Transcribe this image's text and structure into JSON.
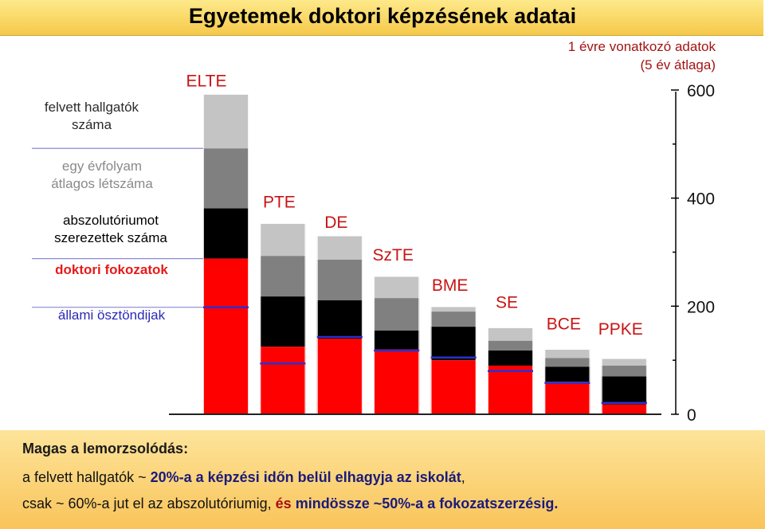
{
  "header": {
    "title": "Egyetemek doktori képzésének adatai"
  },
  "note": {
    "line1": "1 évre vonatkozó adatok",
    "line2": "(5 év átlaga)"
  },
  "legend": {
    "felvett": [
      "felvett hallgatók",
      "száma"
    ],
    "evfolyam": [
      "egy évfolyam",
      "átlagos létszáma"
    ],
    "absz": [
      "abszolutóriumot",
      "szerezettek száma"
    ],
    "doktori": "doktori fokozatok",
    "osztondij": "állami ösztöndijak"
  },
  "footer": {
    "heading": "Magas a lemorzsolódás:",
    "line2_a": "a felvett hallgatók   ~ ",
    "line2_b": "20%-a a képzési időn belül elhagyja az iskolát",
    "line2_c": ",",
    "line3_a": "csak ~ 60%-a  jut el az abszolutóriumig,  ",
    "line3_b": "és",
    "line3_c": " mindössze ~50%-a a fokozatszerzésig."
  },
  "chart_data": {
    "type": "bar",
    "categories": [
      "ELTE",
      "PTE",
      "DE",
      "SzTE",
      "BME",
      "SE",
      "BCE",
      "PPKE"
    ],
    "series": [
      {
        "name": "felvett hallgatók száma",
        "values": [
          592,
          353,
          330,
          255,
          199,
          160,
          120,
          103
        ]
      },
      {
        "name": "egy évfolyam átlagos létszáma",
        "values": [
          492,
          293,
          286,
          215,
          190,
          136,
          104,
          90
        ]
      },
      {
        "name": "abszolutóriumot szerezettek száma",
        "values": [
          381,
          218,
          211,
          155,
          162,
          118,
          88,
          70
        ]
      },
      {
        "name": "doktori fokozatok",
        "values": [
          288,
          125,
          140,
          120,
          100,
          90,
          60,
          18
        ]
      },
      {
        "name": "állami ösztöndijak",
        "values": [
          198,
          94,
          143,
          118,
          105,
          80,
          58,
          21
        ]
      }
    ],
    "colors": {
      "felvett": "#c4c4c4",
      "evfolyam": "#808080",
      "absz": "#000000",
      "doktori": "#ff0000",
      "osztondij_line": "#2f2fcc",
      "ref_line": "#8a8ad6"
    },
    "ylim": [
      0,
      600
    ],
    "yticks": [
      0,
      200,
      400,
      600
    ],
    "axis_position": "right"
  }
}
